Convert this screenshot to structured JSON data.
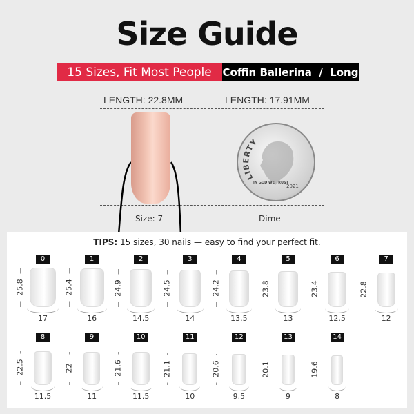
{
  "title": "Size Guide",
  "banner": {
    "left": "15 Sizes, Fit Most People",
    "right": "Coffin Ballerina  /  Long"
  },
  "comparison": {
    "nail_length": "LENGTH: 22.8MM",
    "coin_length": "LENGTH: 17.91MM",
    "nail_caption": "Size: 7",
    "coin_caption": "Dime",
    "coin_text": {
      "liberty": "LIBERTY",
      "motto": "IN GOD WE TRUST",
      "year": "2021"
    }
  },
  "tips": {
    "label": "TIPS:",
    "text": " 15 sizes, 30 nails — easy to find your perfect fit."
  },
  "colors": {
    "accent": "#e12a45",
    "banner_dark": "#000000",
    "nail_pink": "#f3c6b6",
    "background": "#ebebeb"
  },
  "sizes": [
    {
      "size": "0",
      "length": "25.8",
      "width": "17"
    },
    {
      "size": "1",
      "length": "25.4",
      "width": "16"
    },
    {
      "size": "2",
      "length": "24.9",
      "width": "14.5"
    },
    {
      "size": "3",
      "length": "24.5",
      "width": "14"
    },
    {
      "size": "4",
      "length": "24.2",
      "width": "13.5"
    },
    {
      "size": "5",
      "length": "23.8",
      "width": "13"
    },
    {
      "size": "6",
      "length": "23.4",
      "width": "12.5"
    },
    {
      "size": "7",
      "length": "22.8",
      "width": "12"
    },
    {
      "size": "8",
      "length": "22.5",
      "width": "11.5"
    },
    {
      "size": "9",
      "length": "22",
      "width": "11"
    },
    {
      "size": "10",
      "length": "21.6",
      "width": "11.5"
    },
    {
      "size": "11",
      "length": "21.1",
      "width": "10"
    },
    {
      "size": "12",
      "length": "20.6",
      "width": "9.5"
    },
    {
      "size": "13",
      "length": "20.1",
      "width": "9"
    },
    {
      "size": "14",
      "length": "19.6",
      "width": "8"
    }
  ]
}
